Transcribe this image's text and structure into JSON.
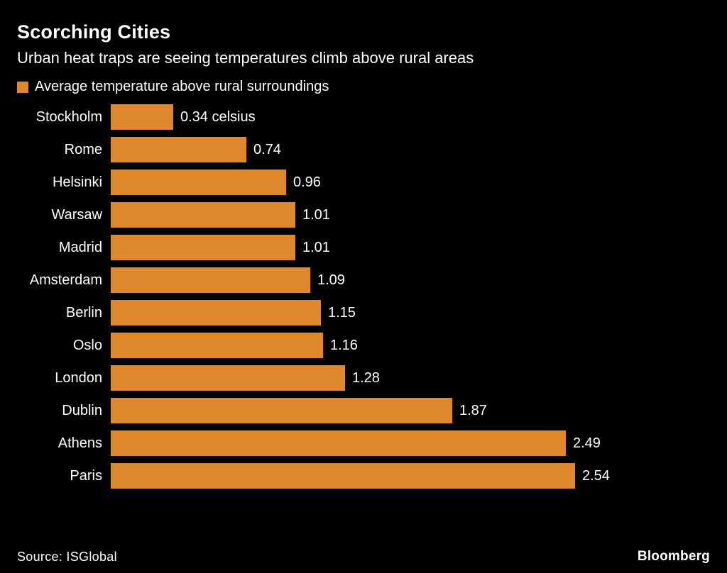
{
  "header": {
    "title": "Scorching Cities",
    "subtitle": "Urban heat traps are seeing temperatures climb above rural areas"
  },
  "legend": {
    "label": "Average temperature above rural surroundings",
    "swatch_color": "#E0892C"
  },
  "chart_data": {
    "type": "bar",
    "orientation": "horizontal",
    "title": "Scorching Cities",
    "subtitle": "Urban heat traps are seeing temperatures climb above rural areas",
    "legend": [
      "Average temperature above rural surroundings"
    ],
    "legend_position": "top",
    "unit": "celsius",
    "categories": [
      "Stockholm",
      "Rome",
      "Helsinki",
      "Warsaw",
      "Madrid",
      "Amsterdam",
      "Berlin",
      "Oslo",
      "London",
      "Dublin",
      "Athens",
      "Paris"
    ],
    "values": [
      0.34,
      0.74,
      0.96,
      1.01,
      1.01,
      1.09,
      1.15,
      1.16,
      1.28,
      1.87,
      2.49,
      2.54
    ],
    "value_labels": [
      "0.34 celsius",
      "0.74",
      "0.96",
      "1.01",
      "1.01",
      "1.09",
      "1.15",
      "1.16",
      "1.28",
      "1.87",
      "2.49",
      "2.54"
    ],
    "xlim": [
      0,
      2.8
    ],
    "grid": false,
    "bar_color": "#E0892C",
    "background_color": "#000000",
    "text_color": "#FFFFFF"
  },
  "footer": {
    "source": "Source: ISGlobal",
    "brand": "Bloomberg"
  }
}
